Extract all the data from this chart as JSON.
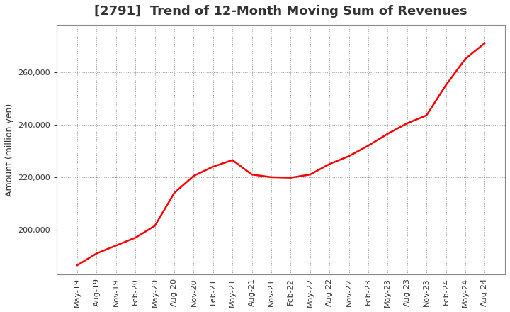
{
  "title": "[2791]  Trend of 12-Month Moving Sum of Revenues",
  "ylabel": "Amount (million yen)",
  "line_color": "#FF0000",
  "line_width": 1.8,
  "background_color": "#FFFFFF",
  "plot_bg_color": "#FFFFFF",
  "grid_color": "#999999",
  "ylim": [
    183000,
    278000
  ],
  "yticks": [
    200000,
    220000,
    240000,
    260000
  ],
  "x_labels": [
    "May-19",
    "Aug-19",
    "Nov-19",
    "Feb-20",
    "May-20",
    "Aug-20",
    "Nov-20",
    "Feb-21",
    "May-21",
    "Aug-21",
    "Nov-21",
    "Feb-22",
    "May-22",
    "Aug-22",
    "Nov-22",
    "Feb-23",
    "May-23",
    "Aug-23",
    "Nov-23",
    "Feb-24",
    "May-24",
    "Aug-24"
  ],
  "values": [
    186500,
    191000,
    194000,
    197000,
    201500,
    214000,
    220500,
    224000,
    226500,
    221000,
    220000,
    219800,
    221000,
    225000,
    228000,
    232000,
    236500,
    240500,
    243500,
    255000,
    265000,
    271000
  ],
  "title_fontsize": 13,
  "tick_fontsize": 8,
  "ylabel_fontsize": 9
}
